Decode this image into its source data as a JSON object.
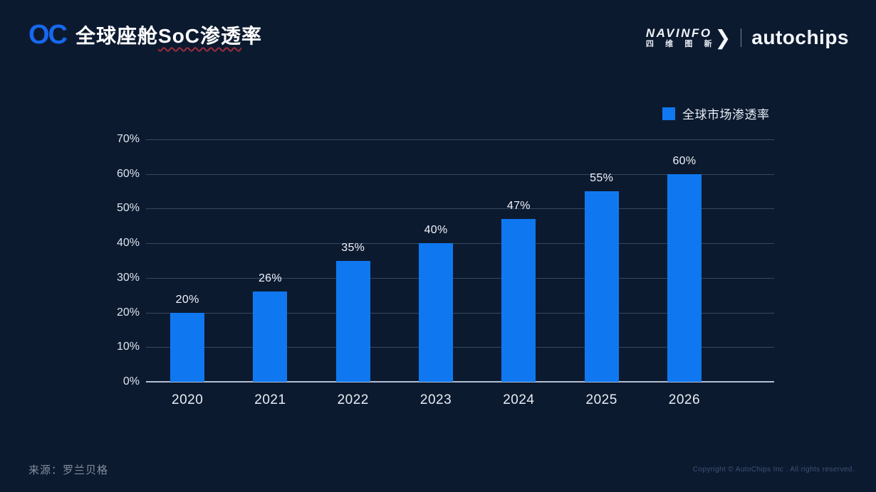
{
  "branding": {
    "oc_logo": "OC",
    "oc_color": "#1768ef",
    "navinfo_en": "NAVINFO",
    "navinfo_cn_chars": [
      "四",
      "维",
      "图",
      "新"
    ],
    "navinfo_chevron": "❯",
    "autochips": "autochips"
  },
  "header": {
    "title_prefix": "全球座舱",
    "title_marked": "SoC渗透",
    "title_suffix": "率",
    "title_full": "全球座舱SoC渗透率"
  },
  "footer": {
    "source": "来源：罗兰贝格",
    "copyright": "Copyright © AutoChips Inc . All rights reserved."
  },
  "chart_data": {
    "type": "bar",
    "title": "全球座舱SoC渗透率",
    "legend": "全球市场渗透率",
    "legend_position": "top-right",
    "categories": [
      "2020",
      "2021",
      "2022",
      "2023",
      "2024",
      "2025",
      "2026"
    ],
    "values": [
      20,
      26,
      35,
      40,
      47,
      55,
      60
    ],
    "value_labels": [
      "20%",
      "26%",
      "35%",
      "40%",
      "47%",
      "55%",
      "60%"
    ],
    "yticks": [
      0,
      10,
      20,
      30,
      40,
      50,
      60,
      70
    ],
    "ytick_labels": [
      "0%",
      "10%",
      "20%",
      "30%",
      "40%",
      "50%",
      "60%",
      "70%"
    ],
    "ylim": [
      0,
      70
    ],
    "ylabel": "",
    "xlabel": "",
    "grid": true,
    "bar_color": "#0f78f0",
    "background": "#0c1a30"
  }
}
